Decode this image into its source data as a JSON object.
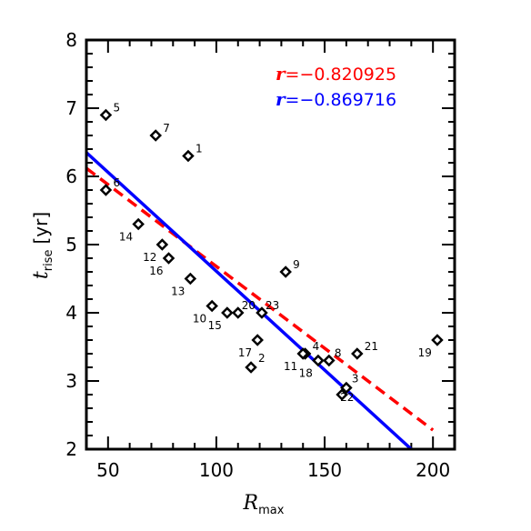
{
  "chart_data": {
    "type": "scatter",
    "xlabel": {
      "main": "R",
      "sub": "max"
    },
    "ylabel": {
      "main": "t",
      "sub": "rise",
      "unit": "[yr]"
    },
    "xlim": [
      40,
      210
    ],
    "ylim": [
      2,
      8
    ],
    "xticks": [
      50,
      100,
      150,
      200
    ],
    "yticks": [
      2,
      3,
      4,
      5,
      6,
      7,
      8
    ],
    "marker": "diamond",
    "marker_color": "#000000",
    "points": [
      {
        "label": "1",
        "x": 87,
        "y": 6.3
      },
      {
        "label": "2",
        "x": 116,
        "y": 3.2
      },
      {
        "label": "3",
        "x": 160,
        "y": 2.9
      },
      {
        "label": "4",
        "x": 141,
        "y": 3.4
      },
      {
        "label": "5",
        "x": 49,
        "y": 6.9
      },
      {
        "label": "6",
        "x": 49,
        "y": 5.8
      },
      {
        "label": "7",
        "x": 72,
        "y": 6.6
      },
      {
        "label": "8",
        "x": 152,
        "y": 3.3
      },
      {
        "label": "9",
        "x": 132,
        "y": 4.6
      },
      {
        "label": "10",
        "x": 98,
        "y": 4.1
      },
      {
        "label": "11",
        "x": 140,
        "y": 3.4
      },
      {
        "label": "12",
        "x": 75,
        "y": 5.0
      },
      {
        "label": "13",
        "x": 88,
        "y": 4.5
      },
      {
        "label": "14",
        "x": 64,
        "y": 5.3
      },
      {
        "label": "15",
        "x": 105,
        "y": 4.0
      },
      {
        "label": "16",
        "x": 78,
        "y": 4.8
      },
      {
        "label": "17",
        "x": 119,
        "y": 3.6
      },
      {
        "label": "18",
        "x": 147,
        "y": 3.3
      },
      {
        "label": "19",
        "x": 202,
        "y": 3.6
      },
      {
        "label": "20",
        "x": 110,
        "y": 4.0
      },
      {
        "label": "21",
        "x": 165,
        "y": 3.4
      },
      {
        "label": "22",
        "x": 158,
        "y": 2.8
      },
      {
        "label": "23",
        "x": 121,
        "y": 4.0
      }
    ],
    "fits": [
      {
        "r_label": "r",
        "r_value": "=−0.820925",
        "color": "#ff0000",
        "style": "dashed",
        "x": [
          40,
          200
        ],
        "y": [
          6.12,
          2.28
        ]
      },
      {
        "r_label": "r",
        "r_value": "=−0.869716",
        "color": "#0000ff",
        "style": "solid",
        "x": [
          40,
          190
        ],
        "y": [
          6.35,
          2.0
        ]
      }
    ]
  }
}
